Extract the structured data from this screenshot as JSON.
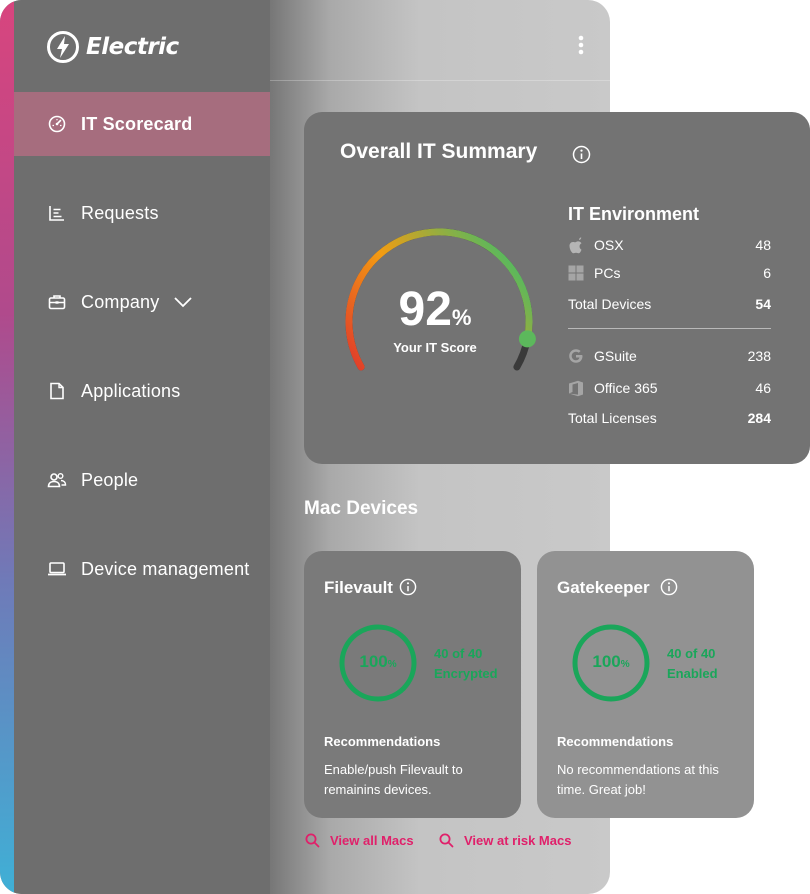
{
  "brand": {
    "name": "Electric"
  },
  "colors": {
    "accent_pink": "#e0206a",
    "success_green": "#1aa65a",
    "gauge_start": "#e0392b",
    "gauge_mid": "#f39c12",
    "gauge_end": "#5cb85c"
  },
  "sidebar": {
    "items": [
      {
        "label": "IT Scorecard",
        "icon": "speedometer-icon",
        "active": true
      },
      {
        "label": "Requests",
        "icon": "list-icon"
      },
      {
        "label": "Company",
        "icon": "briefcase-icon"
      },
      {
        "label": "Applications",
        "icon": "document-icon"
      },
      {
        "label": "People",
        "icon": "people-icon"
      },
      {
        "label": "Device management",
        "icon": "laptop-icon"
      }
    ]
  },
  "summary": {
    "title": "Overall IT Summary",
    "score": "92",
    "score_unit": "%",
    "score_label": "Your IT Score",
    "score_value": 0.92,
    "environment": {
      "title": "IT Environment",
      "devices": [
        {
          "label": "OSX",
          "value": "48",
          "icon": "apple-icon"
        },
        {
          "label": "PCs",
          "value": "6",
          "icon": "windows-icon"
        }
      ],
      "total_devices": {
        "label": "Total Devices",
        "value": "54"
      },
      "licenses": [
        {
          "label": "GSuite",
          "value": "238",
          "icon": "google-icon"
        },
        {
          "label": "Office 365",
          "value": "46",
          "icon": "office-icon"
        }
      ],
      "total_licenses": {
        "label": "Total Licenses",
        "value": "284"
      }
    }
  },
  "mac_devices": {
    "title": "Mac Devices",
    "cards": [
      {
        "title": "Filevault",
        "percent": "100",
        "unit": "%",
        "caption_line1": "40 of 40",
        "caption_line2": "Encrypted",
        "rec_title": "Recommendations",
        "rec_text": "Enable/push Filevault to remainins devices."
      },
      {
        "title": "Gatekeeper",
        "percent": "100",
        "unit": "%",
        "caption_line1": "40 of 40",
        "caption_line2": "Enabled",
        "rec_title": "Recommendations",
        "rec_text": "No recommendations at this time. Great job!"
      }
    ],
    "links": [
      {
        "label": "View all Macs",
        "icon": "search-icon"
      },
      {
        "label": "View at risk Macs",
        "icon": "search-icon"
      }
    ]
  }
}
